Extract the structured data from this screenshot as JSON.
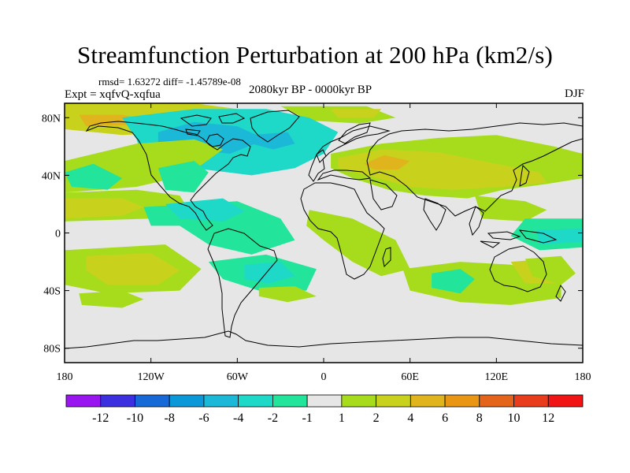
{
  "title": "Streamfunction Perturbation at 200 hPa (km2/s)",
  "stats": "rmsd= 1.63272 diff= -1.45789e-08",
  "expt": "Expt = xqfvQ-xqfua",
  "period": "2080kyr BP - 0000kyr BP",
  "season": "DJF",
  "chart_data": {
    "type": "heatmap",
    "projection": "cylindrical-equidistant",
    "xlim": [
      -180,
      180
    ],
    "ylim": [
      -90,
      90
    ],
    "x_ticks": [
      -180,
      -120,
      -60,
      0,
      60,
      120,
      180
    ],
    "x_tick_labels": [
      "180",
      "120W",
      "60W",
      "0",
      "60E",
      "120E",
      "180"
    ],
    "y_ticks": [
      80,
      40,
      0,
      -40,
      -80
    ],
    "y_tick_labels": [
      "80N",
      "40N",
      "0",
      "40S",
      "80S"
    ],
    "colorbar": {
      "labels": [
        "-12",
        "-10",
        "-8",
        "-6",
        "-4",
        "-2",
        "-1",
        "1",
        "2",
        "4",
        "6",
        "8",
        "10",
        "12"
      ],
      "colors": [
        "#9a16f0",
        "#3c2fe0",
        "#1769d8",
        "#0b98d8",
        "#1cb8d8",
        "#1ed8c8",
        "#22e49a",
        "#e6e6e6",
        "#a6dc1c",
        "#c8d21c",
        "#e0b41c",
        "#e89614",
        "#e4641c",
        "#e83c1c",
        "#f01414"
      ]
    },
    "regions": [
      {
        "level": 4,
        "polygon": [
          [
            -180,
            90
          ],
          [
            -90,
            90
          ],
          [
            -60,
            86
          ],
          [
            -40,
            78
          ],
          [
            -70,
            76
          ],
          [
            -100,
            70
          ],
          [
            -140,
            68
          ],
          [
            -180,
            72
          ]
        ]
      },
      {
        "level": 6,
        "polygon": [
          [
            -170,
            82
          ],
          [
            -140,
            82
          ],
          [
            -120,
            78
          ],
          [
            -130,
            75
          ],
          [
            -165,
            74
          ]
        ]
      },
      {
        "level": 2,
        "polygon": [
          [
            -30,
            88
          ],
          [
            30,
            88
          ],
          [
            50,
            80
          ],
          [
            25,
            76
          ],
          [
            -10,
            78
          ]
        ]
      },
      {
        "level": 4,
        "polygon": [
          [
            5,
            86
          ],
          [
            40,
            86
          ],
          [
            35,
            80
          ],
          [
            10,
            80
          ]
        ]
      },
      {
        "level": -4,
        "polygon": [
          [
            -140,
            80
          ],
          [
            -90,
            86
          ],
          [
            -40,
            86
          ],
          [
            -10,
            80
          ],
          [
            10,
            70
          ],
          [
            0,
            55
          ],
          [
            -20,
            45
          ],
          [
            -50,
            40
          ],
          [
            -90,
            45
          ],
          [
            -125,
            50
          ],
          [
            -130,
            65
          ]
        ]
      },
      {
        "level": -6,
        "polygon": [
          [
            -115,
            70
          ],
          [
            -90,
            77
          ],
          [
            -60,
            74
          ],
          [
            -40,
            65
          ],
          [
            -65,
            55
          ],
          [
            -95,
            58
          ],
          [
            -115,
            62
          ]
        ]
      },
      {
        "level": -6,
        "polygon": [
          [
            -50,
            68
          ],
          [
            -25,
            70
          ],
          [
            -20,
            62
          ],
          [
            -35,
            58
          ],
          [
            -50,
            62
          ]
        ]
      },
      {
        "level": 2,
        "polygon": [
          [
            -180,
            28
          ],
          [
            -130,
            32
          ],
          [
            -95,
            40
          ],
          [
            -70,
            58
          ],
          [
            -90,
            65
          ],
          [
            -130,
            62
          ],
          [
            -180,
            50
          ]
        ]
      },
      {
        "level": -2,
        "polygon": [
          [
            -180,
            42
          ],
          [
            -160,
            48
          ],
          [
            -140,
            38
          ],
          [
            -150,
            30
          ],
          [
            -175,
            32
          ]
        ]
      },
      {
        "level": 2,
        "polygon": [
          [
            5,
            55
          ],
          [
            40,
            62
          ],
          [
            80,
            66
          ],
          [
            120,
            68
          ],
          [
            160,
            60
          ],
          [
            180,
            55
          ],
          [
            180,
            38
          ],
          [
            155,
            34
          ],
          [
            125,
            30
          ],
          [
            100,
            24
          ],
          [
            70,
            26
          ],
          [
            45,
            30
          ],
          [
            20,
            38
          ],
          [
            5,
            45
          ]
        ]
      },
      {
        "level": 4,
        "polygon": [
          [
            10,
            52
          ],
          [
            40,
            58
          ],
          [
            80,
            56
          ],
          [
            110,
            50
          ],
          [
            150,
            42
          ],
          [
            155,
            35
          ],
          [
            125,
            32
          ],
          [
            90,
            30
          ],
          [
            60,
            32
          ],
          [
            30,
            40
          ],
          [
            10,
            45
          ]
        ]
      },
      {
        "level": 6,
        "polygon": [
          [
            28,
            48
          ],
          [
            42,
            54
          ],
          [
            60,
            50
          ],
          [
            52,
            44
          ],
          [
            35,
            44
          ]
        ]
      },
      {
        "level": -2,
        "polygon": [
          [
            -115,
            45
          ],
          [
            -90,
            50
          ],
          [
            -80,
            42
          ],
          [
            -90,
            28
          ],
          [
            -110,
            30
          ]
        ]
      },
      {
        "level": 2,
        "polygon": [
          [
            -180,
            8
          ],
          [
            -120,
            10
          ],
          [
            -95,
            18
          ],
          [
            -100,
            26
          ],
          [
            -130,
            30
          ],
          [
            -180,
            28
          ]
        ]
      },
      {
        "level": 4,
        "polygon": [
          [
            -180,
            10
          ],
          [
            -140,
            12
          ],
          [
            -125,
            18
          ],
          [
            -140,
            24
          ],
          [
            -180,
            24
          ]
        ]
      },
      {
        "level": -2,
        "polygon": [
          [
            -125,
            18
          ],
          [
            -60,
            22
          ],
          [
            -30,
            10
          ],
          [
            -20,
            -5
          ],
          [
            -50,
            -15
          ],
          [
            -80,
            -8
          ],
          [
            -100,
            5
          ],
          [
            -120,
            5
          ]
        ]
      },
      {
        "level": -4,
        "polygon": [
          [
            -110,
            20
          ],
          [
            -70,
            24
          ],
          [
            -55,
            15
          ],
          [
            -70,
            8
          ],
          [
            -100,
            10
          ]
        ]
      },
      {
        "level": 2,
        "polygon": [
          [
            -10,
            16
          ],
          [
            20,
            10
          ],
          [
            50,
            -5
          ],
          [
            60,
            -25
          ],
          [
            40,
            -30
          ],
          [
            20,
            -20
          ],
          [
            0,
            -5
          ],
          [
            -12,
            5
          ]
        ]
      },
      {
        "level": 2,
        "polygon": [
          [
            -180,
            -12
          ],
          [
            -110,
            -8
          ],
          [
            -85,
            -25
          ],
          [
            -100,
            -40
          ],
          [
            -150,
            -42
          ],
          [
            -180,
            -36
          ]
        ]
      },
      {
        "level": 4,
        "polygon": [
          [
            -165,
            -16
          ],
          [
            -120,
            -14
          ],
          [
            -100,
            -26
          ],
          [
            -115,
            -36
          ],
          [
            -150,
            -36
          ],
          [
            -165,
            -26
          ]
        ]
      },
      {
        "level": 2,
        "polygon": [
          [
            -170,
            -42
          ],
          [
            -140,
            -40
          ],
          [
            -125,
            -46
          ],
          [
            -140,
            -52
          ],
          [
            -168,
            -50
          ]
        ]
      },
      {
        "level": -2,
        "polygon": [
          [
            -80,
            -20
          ],
          [
            -40,
            -15
          ],
          [
            -5,
            -25
          ],
          [
            -12,
            -40
          ],
          [
            -45,
            -40
          ],
          [
            -70,
            -32
          ]
        ]
      },
      {
        "level": -4,
        "polygon": [
          [
            -55,
            -22
          ],
          [
            -30,
            -20
          ],
          [
            -20,
            -30
          ],
          [
            -38,
            -35
          ],
          [
            -55,
            -32
          ]
        ]
      },
      {
        "level": 2,
        "polygon": [
          [
            -45,
            -38
          ],
          [
            -20,
            -37
          ],
          [
            -5,
            -44
          ],
          [
            -25,
            -48
          ],
          [
            -45,
            -44
          ]
        ]
      },
      {
        "level": 2,
        "polygon": [
          [
            55,
            -25
          ],
          [
            95,
            -20
          ],
          [
            130,
            -22
          ],
          [
            165,
            -30
          ],
          [
            165,
            -45
          ],
          [
            130,
            -50
          ],
          [
            95,
            -48
          ],
          [
            60,
            -40
          ]
        ]
      },
      {
        "level": -2,
        "polygon": [
          [
            75,
            -28
          ],
          [
            95,
            -25
          ],
          [
            105,
            -32
          ],
          [
            95,
            -42
          ],
          [
            75,
            -38
          ]
        ]
      },
      {
        "level": 4,
        "polygon": [
          [
            130,
            -20
          ],
          [
            155,
            -18
          ],
          [
            170,
            -25
          ],
          [
            165,
            -35
          ],
          [
            140,
            -35
          ]
        ]
      },
      {
        "level": 2,
        "polygon": [
          [
            105,
            26
          ],
          [
            140,
            22
          ],
          [
            155,
            16
          ],
          [
            140,
            8
          ],
          [
            110,
            10
          ]
        ]
      },
      {
        "level": -2,
        "polygon": [
          [
            140,
            10
          ],
          [
            180,
            10
          ],
          [
            180,
            -10
          ],
          [
            150,
            -12
          ],
          [
            130,
            -2
          ]
        ]
      },
      {
        "level": -4,
        "polygon": [
          [
            148,
            2
          ],
          [
            180,
            3
          ],
          [
            180,
            -6
          ],
          [
            150,
            -8
          ]
        ]
      },
      {
        "level": 2,
        "polygon": [
          [
            140,
            -18
          ],
          [
            165,
            -16
          ],
          [
            175,
            -28
          ],
          [
            165,
            -36
          ],
          [
            145,
            -30
          ]
        ]
      }
    ]
  }
}
